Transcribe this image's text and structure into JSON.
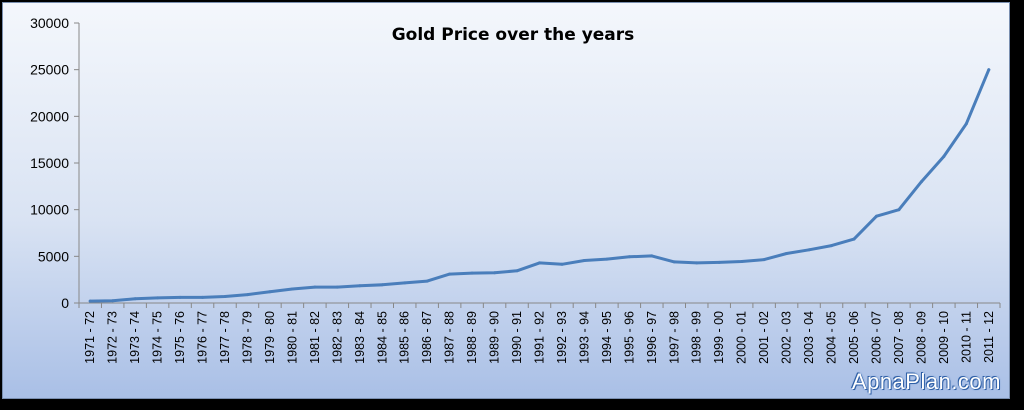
{
  "watermark": "ApnaPlan.com",
  "chart_data": {
    "type": "line",
    "title": "Gold Price over the years",
    "xlabel": "",
    "ylabel": "",
    "ylim": [
      0,
      30000
    ],
    "yticks": [
      "0",
      "5000",
      "10000",
      "15000",
      "20000",
      "25000",
      "30000"
    ],
    "grid": false,
    "legend": "none",
    "line_color": "#4a7ebb",
    "categories": [
      "1971 - 72",
      "1972 - 73",
      "1973 - 74",
      "1974 - 75",
      "1975 - 76",
      "1976 - 77",
      "1977 - 78",
      "1978 - 79",
      "1979 - 80",
      "1980 - 81",
      "1981 - 82",
      "1982 - 83",
      "1983 - 84",
      "1984 - 85",
      "1985 - 86",
      "1986 - 87",
      "1987 - 88",
      "1988 - 89",
      "1989 - 90",
      "1990 - 91",
      "1991 - 92",
      "1992 - 93",
      "1993 - 94",
      "1994 - 95",
      "1995 - 96",
      "1996 - 97",
      "1997 - 98",
      "1998 - 99",
      "1999 - 00",
      "2000 - 01",
      "2001 - 02",
      "2002 - 03",
      "2003 - 04",
      "2004 - 05",
      "2005 - 06",
      "2006 - 07",
      "2007 - 08",
      "2008 - 09",
      "2009 - 10",
      "2010 - 11",
      "2011 - 12"
    ],
    "series": [
      {
        "values": [
          200,
          250,
          450,
          550,
          600,
          600,
          700,
          900,
          1200,
          1500,
          1700,
          1700,
          1850,
          1950,
          2150,
          2350,
          3100,
          3200,
          3250,
          3450,
          4300,
          4150,
          4550,
          4700,
          4950,
          5050,
          4400,
          4300,
          4350,
          4450,
          4650,
          5300,
          5700,
          6150,
          6850,
          9300,
          10000,
          13000,
          15700,
          19200,
          25000
        ]
      }
    ]
  }
}
